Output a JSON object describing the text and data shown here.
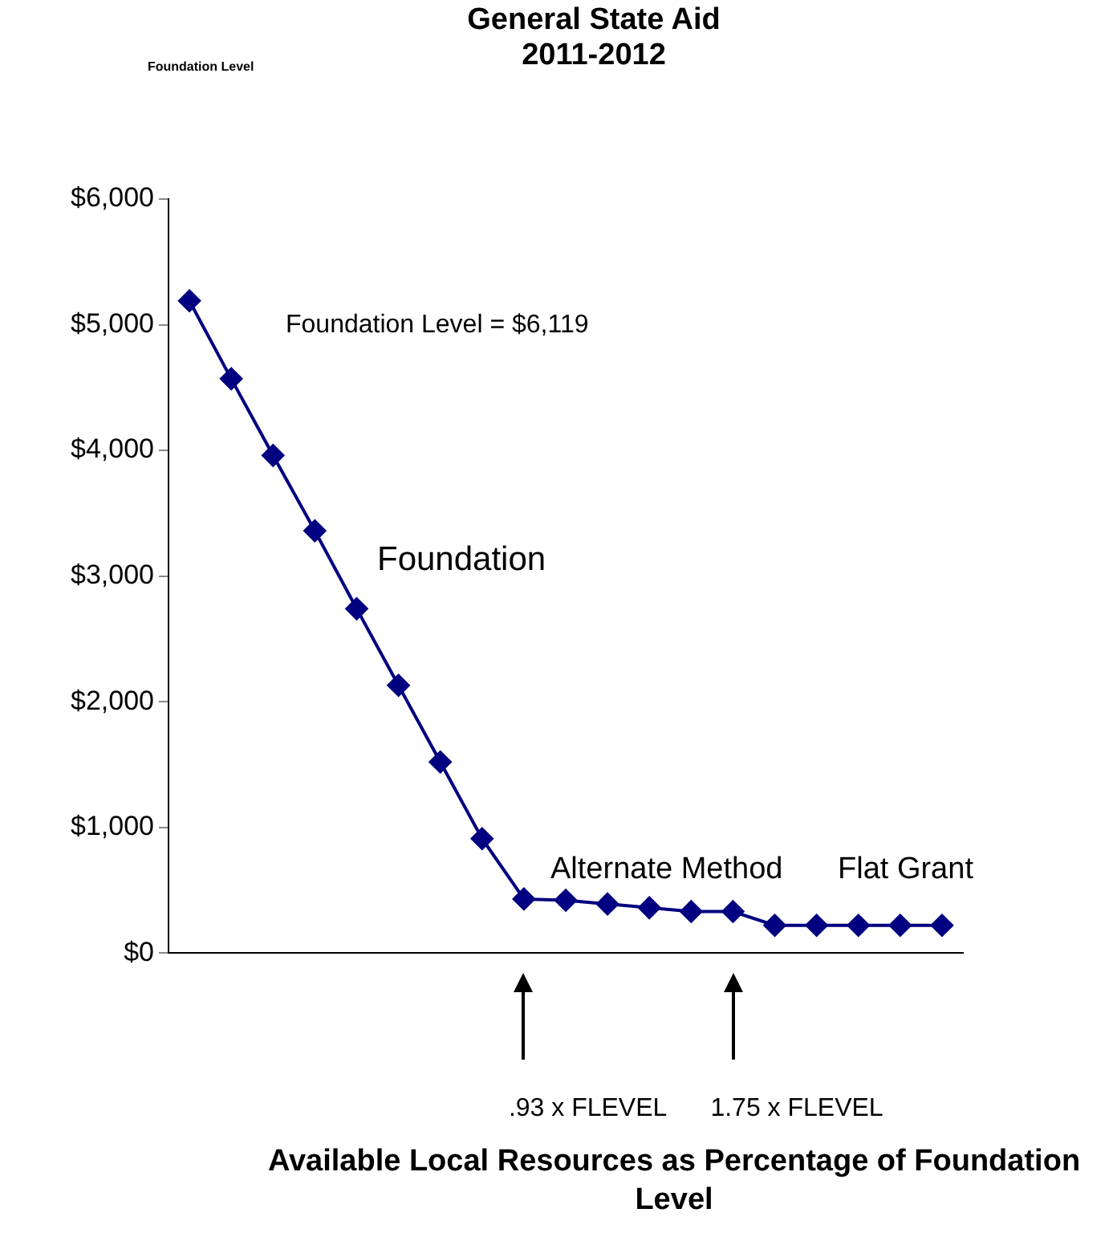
{
  "chart_data": {
    "type": "line",
    "title": "General State Aid",
    "subtitle": "2011-2012",
    "categories": [
      null,
      null,
      null,
      null,
      null,
      null,
      null,
      null,
      null,
      null,
      null,
      null,
      null,
      null,
      null,
      null,
      null,
      null,
      null
    ],
    "series": [
      {
        "color": "#000080",
        "values": [
          5190,
          4570,
          3960,
          3360,
          2740,
          2130,
          1520,
          910,
          430,
          420,
          390,
          360,
          330,
          330,
          220,
          220,
          220,
          220,
          220
        ]
      }
    ],
    "ylim": [
      0,
      6000
    ],
    "yticks": [
      {
        "value": 0,
        "label": "$0"
      },
      {
        "value": 1000,
        "label": "$1,000"
      },
      {
        "value": 2000,
        "label": "$2,000"
      },
      {
        "value": 3000,
        "label": "$3,000"
      },
      {
        "value": 4000,
        "label": "$4,000"
      },
      {
        "value": 5000,
        "label": "$5,000"
      },
      {
        "value": 6000,
        "label": "$6,000"
      }
    ],
    "grid": false,
    "legend": false,
    "marker": "diamond",
    "line_style": "solid",
    "annotations": [
      "Foundation Level",
      "Foundation Level = $6,119",
      "Foundation",
      "Alternate Method",
      "Flat Grant",
      ".93 x FLEVEL",
      "1.75 x FLEVEL",
      "Available Local Resources as Percentage of Foundation Level"
    ]
  }
}
